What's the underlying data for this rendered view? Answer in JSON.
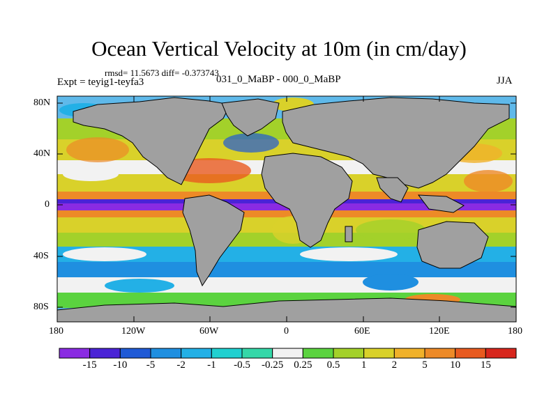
{
  "figure": {
    "title": "Ocean Vertical Velocity at 10m (in cm/day)",
    "stats": "rmsd= 11.5673 diff= -0.373743",
    "experiment": "Expt = teyig1-teyfa3",
    "subtitle": "031_0_MaBP - 000_0_MaBP",
    "season": "JJA"
  },
  "axes": {
    "lat_labels": [
      "80N",
      "40N",
      "0",
      "40S",
      "80S"
    ],
    "lon_labels": [
      "180",
      "120W",
      "60W",
      "0",
      "60E",
      "120E",
      "180"
    ]
  },
  "colorbar": {
    "labels": [
      "-15",
      "-10",
      "-5",
      "-2",
      "-1",
      "-0.5",
      "-0.25",
      "0.25",
      "0.5",
      "1",
      "2",
      "5",
      "10",
      "15"
    ],
    "colors": [
      "#8a2be2",
      "#4a23d6",
      "#1f5ad6",
      "#1f8fe0",
      "#23b0e6",
      "#20d0d0",
      "#35d7a8",
      "#f2f2f2",
      "#5bd33f",
      "#a3d12a",
      "#d9d12a",
      "#f0b12a",
      "#ed8a27",
      "#e85a1f",
      "#d7261d"
    ]
  },
  "colors": {
    "land": "#a0a0a0",
    "coast": "#000000"
  }
}
